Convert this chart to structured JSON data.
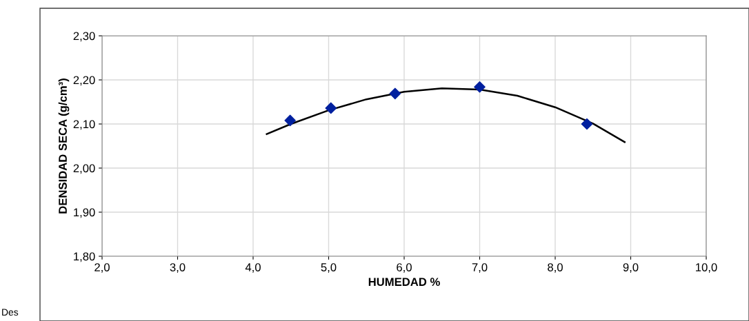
{
  "chart_data": {
    "type": "scatter",
    "xlabel": "HUMEDAD %",
    "ylabel": "DENSIDAD SECA (g/cm³)",
    "marker": "diamond",
    "grid": true,
    "series": [
      {
        "color": "#00209f",
        "x": [
          4.49,
          5.03,
          5.88,
          7.0,
          8.42
        ],
        "values": [
          2.108,
          2.136,
          2.169,
          2.184,
          2.1
        ]
      },
      {
        "type": "line",
        "color": "#000000",
        "marker": "none",
        "line_style": "solid",
        "x": [
          4.18,
          4.5,
          5.0,
          5.5,
          6.0,
          6.5,
          7.0,
          7.5,
          8.0,
          8.5,
          8.92
        ],
        "values": [
          2.077,
          2.1,
          2.131,
          2.156,
          2.173,
          2.181,
          2.178,
          2.164,
          2.138,
          2.101,
          2.059
        ]
      }
    ],
    "xlim": [
      2.0,
      10.0
    ],
    "xticks": [
      {
        "value": 2,
        "label": "2,0"
      },
      {
        "value": 3,
        "label": "3,0"
      },
      {
        "value": 4,
        "label": "4,0"
      },
      {
        "value": 5,
        "label": "5,0"
      },
      {
        "value": 6,
        "label": "6,0"
      },
      {
        "value": 7,
        "label": "7,0"
      },
      {
        "value": 8,
        "label": "8,0"
      },
      {
        "value": 9,
        "label": "9,0"
      },
      {
        "value": 10,
        "label": "10,0"
      }
    ],
    "ylim": [
      1.8,
      2.3
    ],
    "yticks": [
      {
        "value": 1.8,
        "label": "1,80"
      },
      {
        "value": 1.9,
        "label": "1,90"
      },
      {
        "value": 2.0,
        "label": "2,00"
      },
      {
        "value": 2.1,
        "label": "2,10"
      },
      {
        "value": 2.2,
        "label": "2,20"
      },
      {
        "value": 2.3,
        "label": "2,30"
      }
    ],
    "annotations": [
      "Des"
    ]
  }
}
